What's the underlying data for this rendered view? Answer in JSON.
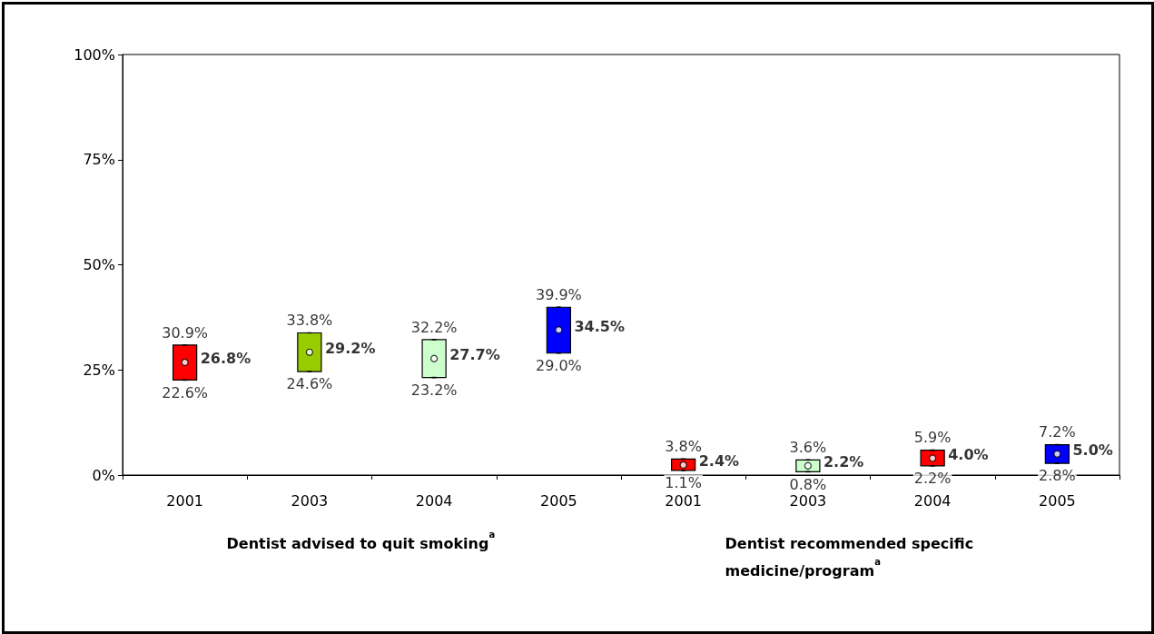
{
  "chart_data": {
    "type": "bar",
    "categories": [
      "2001",
      "2003",
      "2004",
      "2005",
      "2001",
      "2003",
      "2004",
      "2005"
    ],
    "series": [
      {
        "base": [
          22.6,
          24.6,
          23.2,
          29.0,
          1.1,
          0.8,
          2.2,
          2.8
        ],
        "colors": [
          "#ff0000",
          "#99cc00",
          "#ccffcc",
          "#0000ff",
          "#ff0000",
          "#ccffcc",
          "#ff0000",
          "#0000ff"
        ],
        "values": [
          8.3,
          9.2,
          9.0,
          10.9,
          2.7,
          2.8,
          3.7,
          4.4
        ]
      },
      {
        "type": "scatter",
        "color": "#000000",
        "values": [
          30.9,
          33.8,
          32.2,
          39.9,
          3.8,
          3.6,
          5.9,
          7.2
        ],
        "value_labels": [
          "30.9%",
          "33.8%",
          "32.2%",
          "39.9%",
          "3.8%",
          "3.6%",
          "5.9%",
          "7.2%"
        ]
      },
      {
        "type": "scatter",
        "color": "#000000",
        "values": [
          22.6,
          24.6,
          23.2,
          29.0,
          1.1,
          0.8,
          2.2,
          2.8
        ],
        "value_labels": [
          "22.6%",
          "24.6%",
          "23.2%",
          "29.0%",
          "1.1%",
          "0.8%",
          "2.2%",
          "2.8%"
        ]
      },
      {
        "type": "scatter",
        "marker": "circle",
        "color": "#ffffff",
        "values": [
          26.8,
          29.2,
          27.7,
          34.5,
          2.4,
          2.2,
          4.0,
          5.0
        ],
        "value_labels": [
          "26.8%",
          "29.2%",
          "27.7%",
          "34.5%",
          "2.4%",
          "2.2%",
          "4.0%",
          "5.0%"
        ]
      }
    ],
    "ylim": [
      0,
      100
    ],
    "yticks": [
      {
        "value": 0,
        "label": "0%"
      },
      {
        "value": 25,
        "label": "25%"
      },
      {
        "value": 50,
        "label": "50%"
      },
      {
        "value": 75,
        "label": "75%"
      },
      {
        "value": 100,
        "label": "100%"
      }
    ],
    "grid": false,
    "annotations": [
      "Dentist advised to quit smoking$^{a}$",
      "Dentist recommended specific medicine/program$^{a}$"
    ]
  }
}
